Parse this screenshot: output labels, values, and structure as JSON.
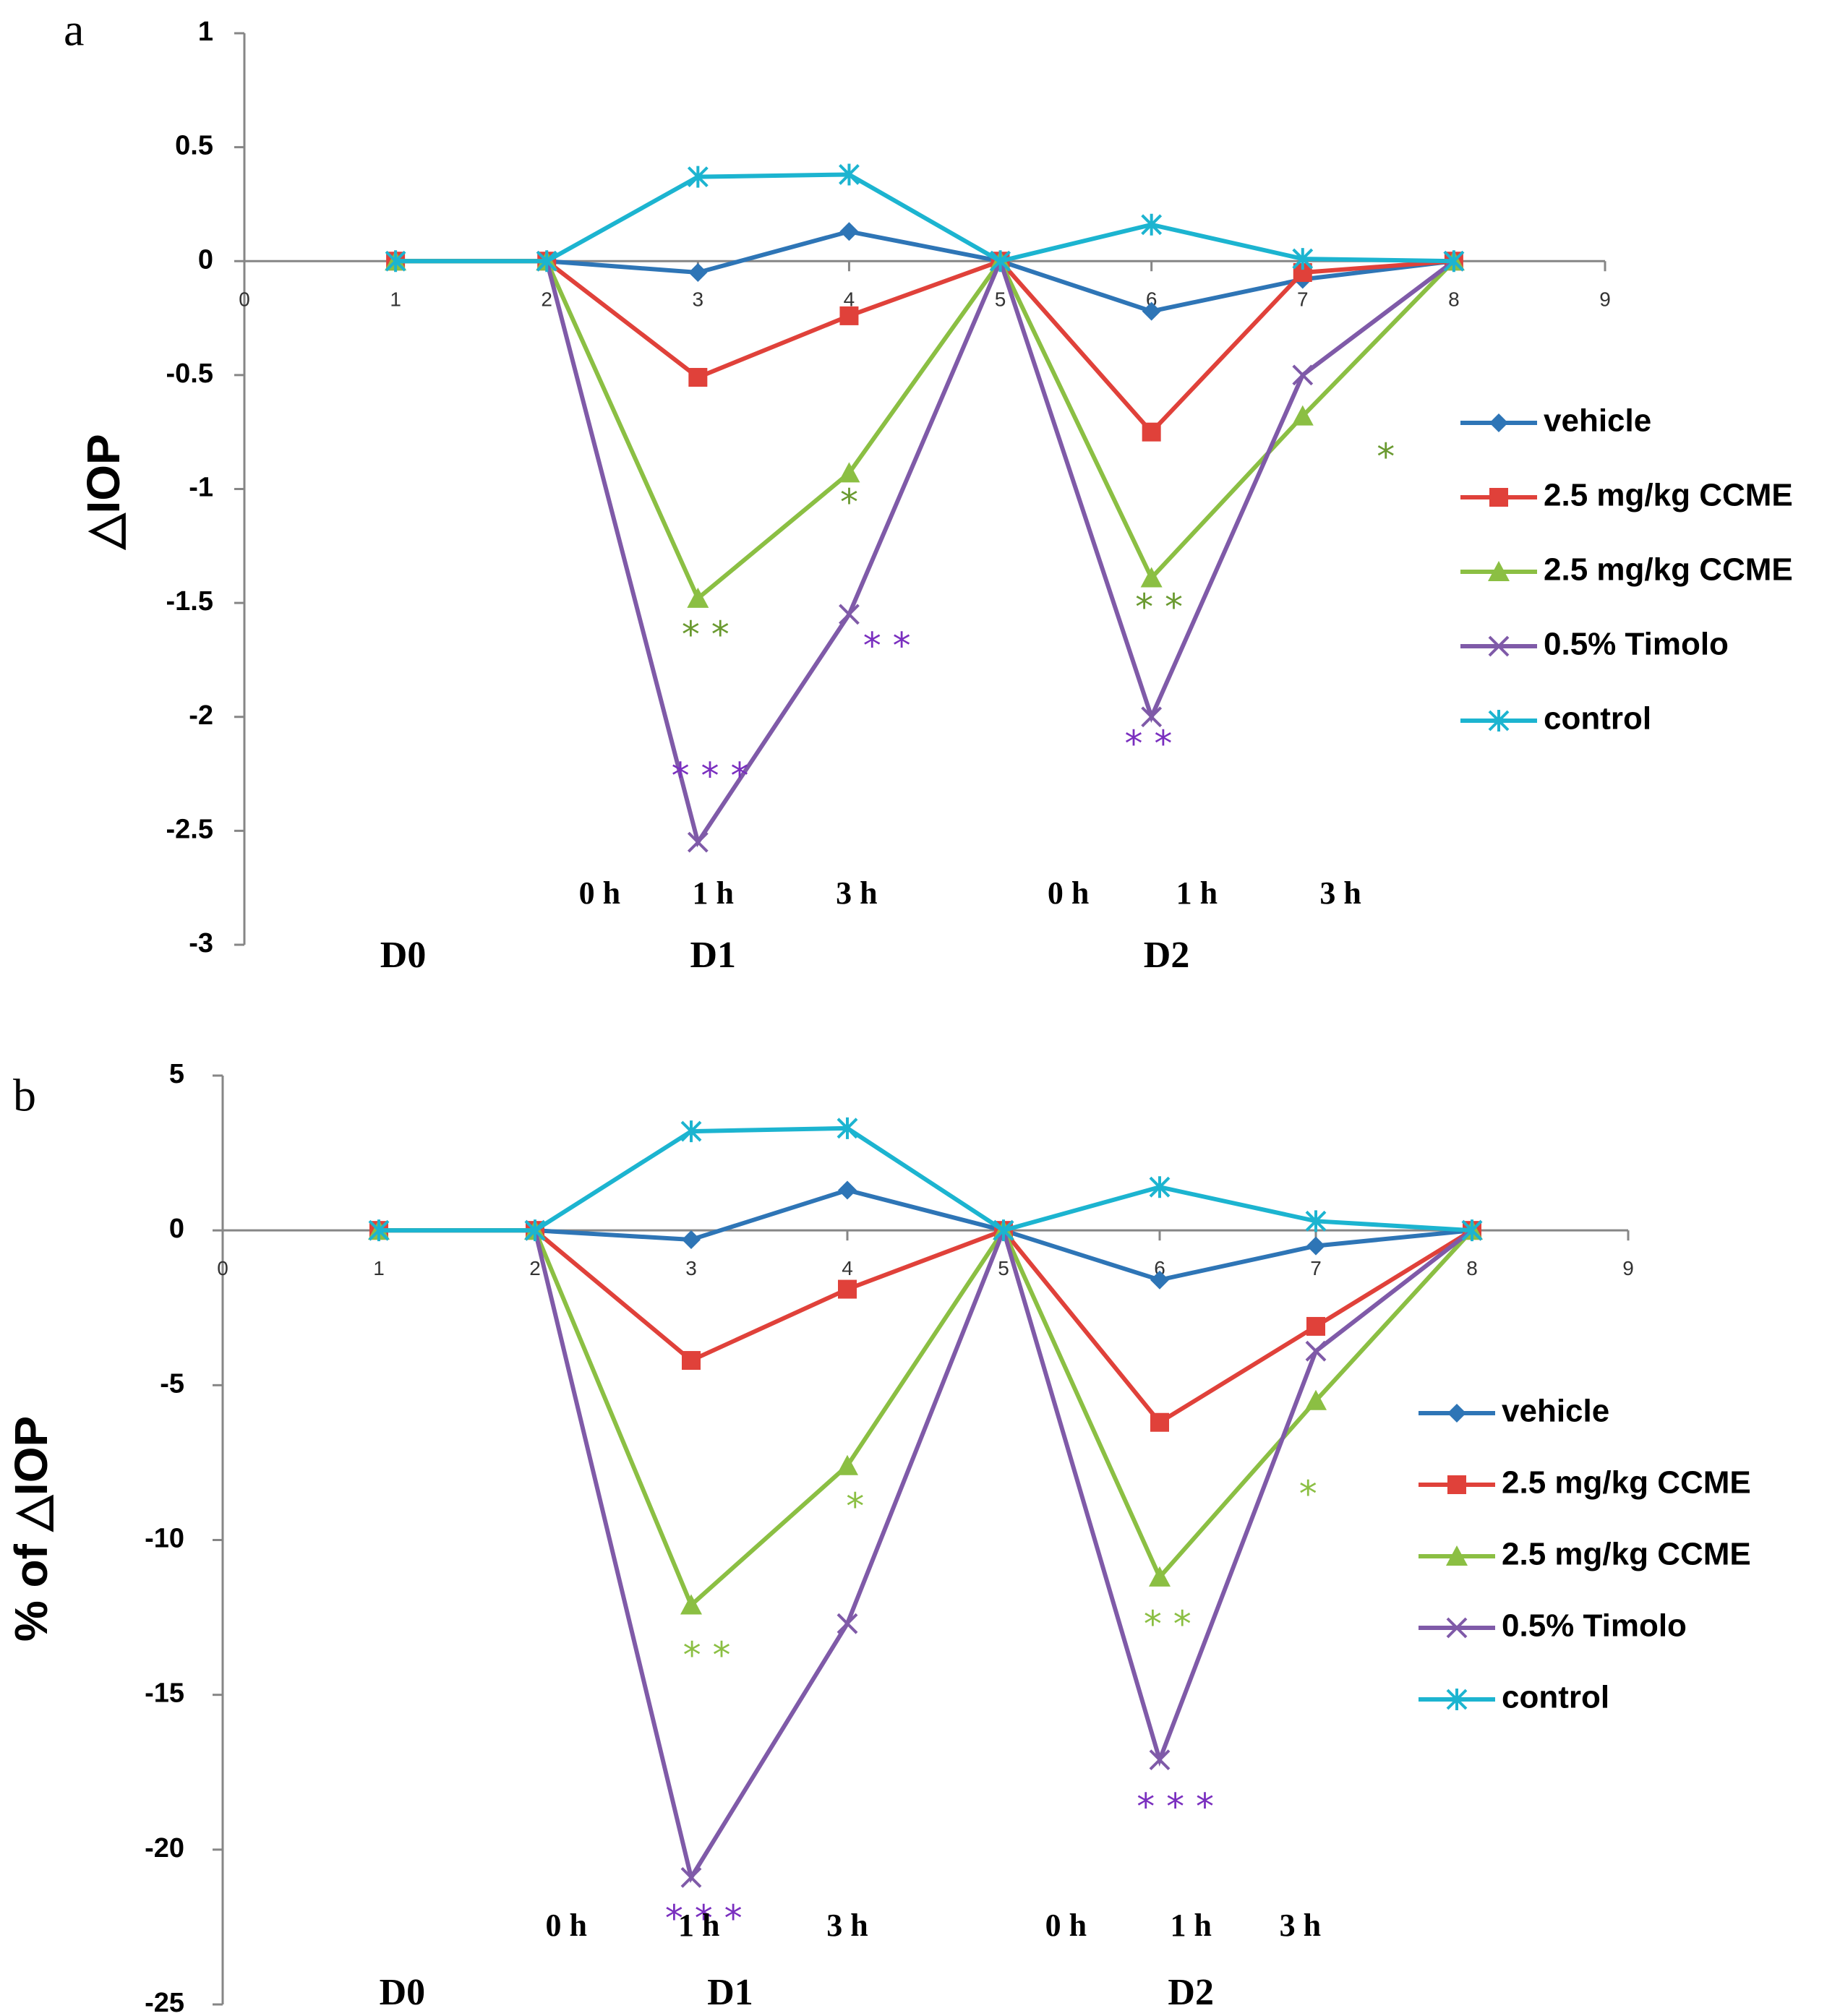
{
  "chart_data": [
    {
      "panel": "a",
      "type": "line",
      "ylabel": "△IOP",
      "ylim": [
        -3,
        1
      ],
      "yticks": [
        "1",
        "0.5",
        "0",
        "-0.5",
        "-1",
        "-1.5",
        "-2",
        "-2.5",
        "-3"
      ],
      "yvals": [
        1,
        0.5,
        0,
        -0.5,
        -1,
        -1.5,
        -2,
        -2.5,
        -3
      ],
      "xlim": [
        0,
        9
      ],
      "xticks": [
        "0",
        "1",
        "2",
        "3",
        "4",
        "5",
        "6",
        "7",
        "8",
        "9"
      ],
      "hour_labels": [
        {
          "text": "0 h",
          "x": 2.35
        },
        {
          "text": "1 h",
          "x": 3.1
        },
        {
          "text": "3 h",
          "x": 4.05
        },
        {
          "text": "0 h",
          "x": 5.45
        },
        {
          "text": "1 h",
          "x": 6.3
        },
        {
          "text": "3 h",
          "x": 7.25
        }
      ],
      "day_labels": [
        {
          "text": "D0",
          "x": 1.05
        },
        {
          "text": "D1",
          "x": 3.1
        },
        {
          "text": "D2",
          "x": 6.1
        }
      ],
      "series": [
        {
          "name": "vehicle",
          "color": "#2e75b6",
          "marker": "diamond",
          "x": [
            1,
            2,
            3,
            4,
            5,
            6,
            7,
            8
          ],
          "y": [
            0,
            0,
            -0.05,
            0.13,
            0,
            -0.22,
            -0.08,
            0
          ]
        },
        {
          "name": "2.5 mg/kg CCME",
          "color": "#e0413a",
          "marker": "square",
          "x": [
            1,
            2,
            3,
            4,
            5,
            6,
            7,
            8
          ],
          "y": [
            0,
            0,
            -0.51,
            -0.24,
            0,
            -0.75,
            -0.05,
            0
          ]
        },
        {
          "name": "2.5 mg/kg CCME",
          "color": "#8bbf43",
          "marker": "triangle",
          "x": [
            1,
            2,
            3,
            4,
            5,
            6,
            7,
            8
          ],
          "y": [
            0,
            0,
            -1.48,
            -0.93,
            0,
            -1.39,
            -0.68,
            0
          ]
        },
        {
          "name": "0.5% Timolo",
          "color": "#7f5aa8",
          "marker": "x",
          "x": [
            2,
            3,
            4,
            5,
            6,
            7,
            8
          ],
          "y": [
            0,
            -2.55,
            -1.55,
            0,
            -2.0,
            -0.5,
            0
          ]
        },
        {
          "name": "control",
          "color": "#1cb4d0",
          "marker": "asterisk",
          "x": [
            1,
            2,
            3,
            4,
            5,
            6,
            7,
            8
          ],
          "y": [
            0,
            0,
            0.37,
            0.38,
            0,
            0.16,
            0.01,
            0
          ]
        }
      ],
      "annotations": [
        {
          "text": "* *",
          "color": "#6a9a30",
          "x": 3.05,
          "y": -1.65
        },
        {
          "text": "*",
          "color": "#6a9a30",
          "x": 4.0,
          "y": -1.07
        },
        {
          "text": "* * *",
          "color": "#7a2fbf",
          "x": 3.08,
          "y": -2.27
        },
        {
          "text": "* *",
          "color": "#7a2fbf",
          "x": 4.25,
          "y": -1.7
        },
        {
          "text": "*   *",
          "color": "#6a9a30",
          "x": 6.05,
          "y": -1.53
        },
        {
          "text": "*  *",
          "color": "#7a2fbf",
          "x": 5.98,
          "y": -2.13
        },
        {
          "text": "*",
          "color": "#6a9a30",
          "x": 7.55,
          "y": -0.87
        }
      ]
    },
    {
      "panel": "b",
      "type": "line",
      "ylabel": "% of △IOP",
      "ylim": [
        -25,
        5
      ],
      "yticks": [
        "5",
        "0",
        "-5",
        "-10",
        "-15",
        "-20",
        "-25"
      ],
      "yvals": [
        5,
        0,
        -5,
        -10,
        -15,
        -20,
        -25
      ],
      "xlim": [
        0,
        9
      ],
      "xticks": [
        "0",
        "1",
        "2",
        "3",
        "4",
        "5",
        "6",
        "7",
        "8",
        "9"
      ],
      "hour_labels": [
        {
          "text": "0 h",
          "x": 2.2
        },
        {
          "text": "1 h",
          "x": 3.05
        },
        {
          "text": "3 h",
          "x": 4.0
        },
        {
          "text": "0 h",
          "x": 5.4
        },
        {
          "text": "1 h",
          "x": 6.2
        },
        {
          "text": "3 h",
          "x": 6.9
        }
      ],
      "day_labels": [
        {
          "text": "D0",
          "x": 1.15
        },
        {
          "text": "D1",
          "x": 3.25
        },
        {
          "text": "D2",
          "x": 6.2
        }
      ],
      "series": [
        {
          "name": "vehicle",
          "color": "#2e75b6",
          "marker": "diamond",
          "x": [
            1,
            2,
            3,
            4,
            5,
            6,
            7,
            8
          ],
          "y": [
            0,
            0,
            -0.3,
            1.3,
            0,
            -1.6,
            -0.5,
            0
          ]
        },
        {
          "name": "2.5 mg/kg CCME",
          "color": "#e0413a",
          "marker": "square",
          "x": [
            1,
            2,
            3,
            4,
            5,
            6,
            7,
            8
          ],
          "y": [
            0,
            0,
            -4.2,
            -1.9,
            0,
            -6.2,
            -3.1,
            0
          ]
        },
        {
          "name": "2.5 mg/kg CCME",
          "color": "#8bbf43",
          "marker": "triangle",
          "x": [
            1,
            2,
            3,
            4,
            5,
            6,
            7,
            8
          ],
          "y": [
            0,
            0,
            -12.1,
            -7.6,
            0,
            -11.2,
            -5.5,
            0
          ]
        },
        {
          "name": "0.5% Timolo",
          "color": "#7f5aa8",
          "marker": "x",
          "x": [
            2,
            3,
            4,
            5,
            6,
            7,
            8
          ],
          "y": [
            0,
            -20.9,
            -12.7,
            0,
            -17.1,
            -3.9,
            0
          ]
        },
        {
          "name": "control",
          "color": "#1cb4d0",
          "marker": "asterisk",
          "x": [
            1,
            2,
            3,
            4,
            5,
            6,
            7,
            8
          ],
          "y": [
            0,
            0,
            3.2,
            3.3,
            0,
            1.4,
            0.3,
            0
          ]
        }
      ],
      "annotations": [
        {
          "text": "*",
          "color": "#8bbf43",
          "x": 4.05,
          "y": -9.0
        },
        {
          "text": "* *",
          "color": "#8bbf43",
          "x": 3.1,
          "y": -13.8
        },
        {
          "text": "* * *",
          "color": "#7a2fbf",
          "x": 3.08,
          "y": -22.3
        },
        {
          "text": "* *",
          "color": "#8bbf43",
          "x": 6.05,
          "y": -12.8
        },
        {
          "text": "* * *",
          "color": "#7a2fbf",
          "x": 6.1,
          "y": -18.7
        },
        {
          "text": "*",
          "color": "#8bbf43",
          "x": 6.95,
          "y": -8.6
        }
      ]
    }
  ]
}
